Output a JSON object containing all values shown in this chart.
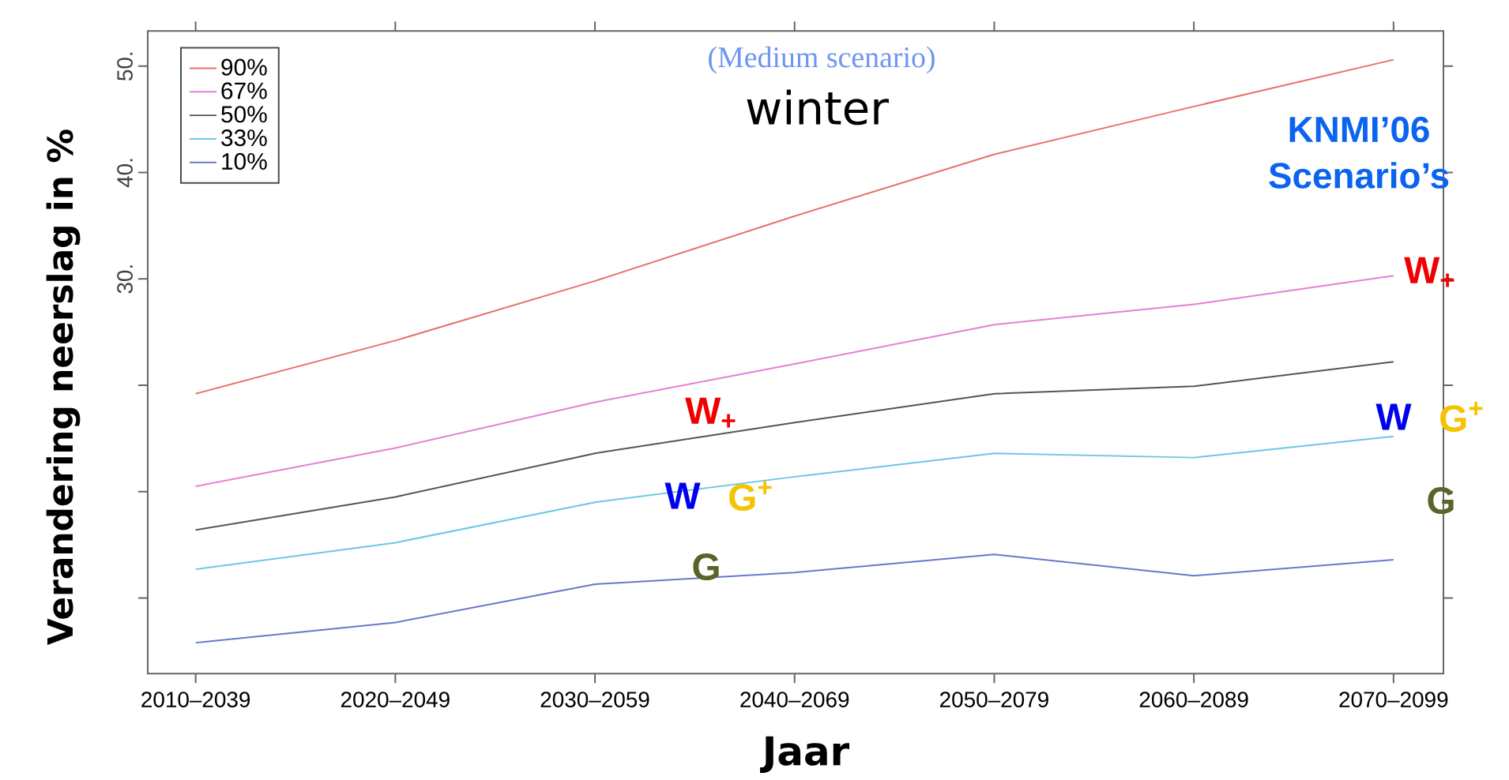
{
  "chart_data": {
    "type": "line",
    "title": "winter",
    "subtitle": "(Medium scenario)",
    "xlabel": "Jaar",
    "ylabel": "Verandering neerslag in %",
    "categories": [
      "2010–2039",
      "2020–2049",
      "2030–2059",
      "2040–2069",
      "2050–2079",
      "2060–2089",
      "2070–2099"
    ],
    "series": [
      {
        "name": "90%",
        "color": "#e8706a",
        "values": [
          19.2,
          24.2,
          29.8,
          35.9,
          41.7,
          46.2,
          50.6
        ]
      },
      {
        "name": "67%",
        "color": "#e57fd6",
        "values": [
          10.5,
          14.1,
          18.4,
          22.0,
          25.7,
          27.6,
          30.3
        ]
      },
      {
        "name": "50%",
        "color": "#555555",
        "values": [
          6.4,
          9.5,
          13.6,
          16.5,
          19.2,
          19.9,
          22.2
        ]
      },
      {
        "name": "33%",
        "color": "#6cc6e8",
        "values": [
          2.7,
          5.2,
          9.0,
          11.4,
          13.6,
          13.2,
          15.2
        ]
      },
      {
        "name": "10%",
        "color": "#6a78c8",
        "values": [
          -4.2,
          -2.3,
          1.3,
          2.4,
          4.1,
          2.1,
          3.6
        ]
      }
    ],
    "ylim": [
      -7.1,
      53.3
    ],
    "yticks": [
      {
        "value": 0,
        "label": null
      },
      {
        "value": 10,
        "label": null
      },
      {
        "value": 20,
        "label": null
      },
      {
        "value": 30,
        "label": "30."
      },
      {
        "value": 40,
        "label": "40."
      },
      {
        "value": 50,
        "label": "50."
      }
    ],
    "legend": "top left",
    "annotations": [
      "KNMI’06",
      "Scenario’s",
      "W$_{+}$",
      "W",
      "G$^{+}$",
      "G",
      "W$_{+}$",
      "W",
      "G$^{+}$",
      "G"
    ]
  }
}
